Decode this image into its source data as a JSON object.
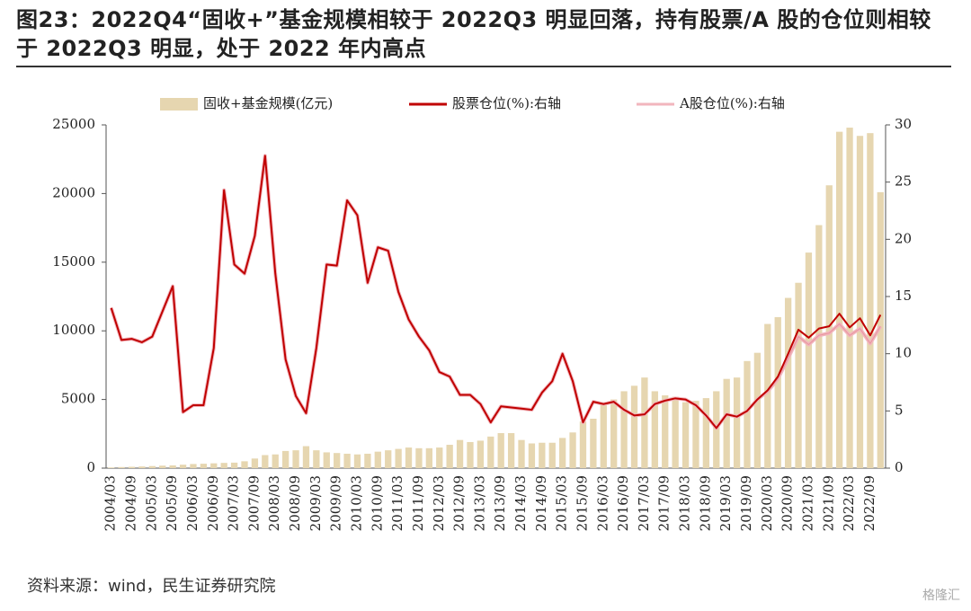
{
  "chart_data": {
    "type": "combo",
    "title": "图23：2022Q4“固收+”基金规模相较于 2022Q3 明显回落，持有股票/A 股的仓位则相较于 2022Q3 明显，处于 2022 年内高点",
    "source": "资料来源：wind，民生证券研究院",
    "watermark": "格隆汇",
    "categories": [
      "2004/03",
      null,
      "2004/09",
      null,
      "2005/03",
      null,
      "2005/09",
      null,
      "2006/03",
      null,
      "2006/09",
      null,
      "2007/03",
      null,
      "2007/09",
      null,
      "2008/03",
      null,
      "2008/09",
      null,
      "2009/03",
      null,
      "2009/09",
      null,
      "2010/03",
      null,
      "2010/09",
      null,
      "2011/03",
      null,
      "2011/09",
      null,
      "2012/03",
      null,
      "2012/09",
      null,
      "2013/03",
      null,
      "2013/09",
      null,
      "2014/03",
      null,
      "2014/09",
      null,
      "2015/03",
      null,
      "2015/09",
      null,
      "2016/03",
      null,
      "2016/09",
      null,
      "2017/03",
      null,
      "2017/09",
      null,
      "2018/03",
      null,
      "2018/09",
      null,
      "2019/03",
      null,
      "2019/09",
      null,
      "2020/03",
      null,
      "2020/09",
      null,
      "2021/03",
      null,
      "2021/09",
      null,
      "2022/03",
      null,
      "2022/09",
      null
    ],
    "series": [
      {
        "name": "固收+基金规模(亿元)",
        "type": "bar",
        "axis": "y",
        "color": "#e6d6b0",
        "values": [
          50,
          80,
          100,
          120,
          150,
          180,
          200,
          250,
          300,
          320,
          350,
          380,
          400,
          500,
          700,
          950,
          1000,
          1250,
          1300,
          1600,
          1300,
          1150,
          1100,
          1050,
          1000,
          1050,
          1200,
          1300,
          1400,
          1500,
          1450,
          1450,
          1500,
          1700,
          2050,
          1900,
          2000,
          2300,
          2550,
          2550,
          2050,
          1800,
          1850,
          1850,
          2200,
          2600,
          3400,
          3600,
          4800,
          5000,
          5600,
          6000,
          6600,
          5600,
          5300,
          5200,
          4800,
          4900,
          5100,
          5600,
          6500,
          6600,
          7800,
          8400,
          10500,
          11000,
          12400,
          13500,
          15700,
          17700,
          20600,
          24500,
          24800,
          24200,
          24400,
          20100
        ]
      },
      {
        "name": "A股仓位(%):右轴",
        "type": "line",
        "axis": "y2",
        "color": "#f2b6bd",
        "values": [
          14,
          11.2,
          11.3,
          11.0,
          11.5,
          13.7,
          15.9,
          4.9,
          5.5,
          5.5,
          10.5,
          24.3,
          17.8,
          17.0,
          20.3,
          27.3,
          17,
          9.5,
          6.3,
          4.8,
          10.5,
          17.8,
          17.7,
          23.4,
          22.1,
          16.2,
          19.3,
          19.0,
          15.4,
          13.0,
          11.5,
          10.3,
          8.4,
          8.0,
          6.4,
          6.4,
          5.6,
          4.0,
          5.4,
          5.3,
          5.2,
          5.1,
          6.6,
          7.6,
          10.0,
          7.6,
          4.0,
          5.8,
          5.6,
          5.8,
          5.1,
          4.6,
          4.7,
          5.6,
          5.9,
          6.1,
          6.0,
          5.5,
          4.6,
          3.5,
          4.7,
          4.5,
          5.0,
          6.0,
          6.7,
          7.8,
          9.6,
          11.5,
          10.8,
          11.6,
          11.8,
          12.6,
          11.6,
          12.2,
          10.9,
          12.4
        ]
      },
      {
        "name": "股票仓位(%):右轴",
        "type": "line",
        "axis": "y2",
        "color": "#c00000",
        "values": [
          14,
          11.2,
          11.3,
          11.0,
          11.5,
          13.7,
          15.9,
          4.9,
          5.5,
          5.5,
          10.5,
          24.3,
          17.8,
          17.0,
          20.3,
          27.3,
          17,
          9.5,
          6.3,
          4.8,
          10.5,
          17.8,
          17.7,
          23.4,
          22.1,
          16.2,
          19.3,
          19.0,
          15.4,
          13.0,
          11.5,
          10.3,
          8.4,
          8.0,
          6.4,
          6.4,
          5.6,
          4.0,
          5.4,
          5.3,
          5.2,
          5.1,
          6.6,
          7.6,
          10.0,
          7.6,
          4.0,
          5.8,
          5.6,
          5.8,
          5.1,
          4.6,
          4.7,
          5.6,
          5.9,
          6.1,
          6.0,
          5.5,
          4.6,
          3.5,
          4.7,
          4.5,
          5.0,
          6.0,
          6.8,
          8.0,
          10.0,
          12.1,
          11.4,
          12.2,
          12.4,
          13.5,
          12.3,
          13.1,
          11.6,
          13.4
        ]
      }
    ],
    "ylim": [
      0,
      25000
    ],
    "yticks": [
      0,
      5000,
      10000,
      15000,
      20000,
      25000
    ],
    "y2lim": [
      0,
      30
    ],
    "y2ticks": [
      0,
      5,
      10,
      15,
      20,
      25,
      30
    ],
    "grid": false
  }
}
